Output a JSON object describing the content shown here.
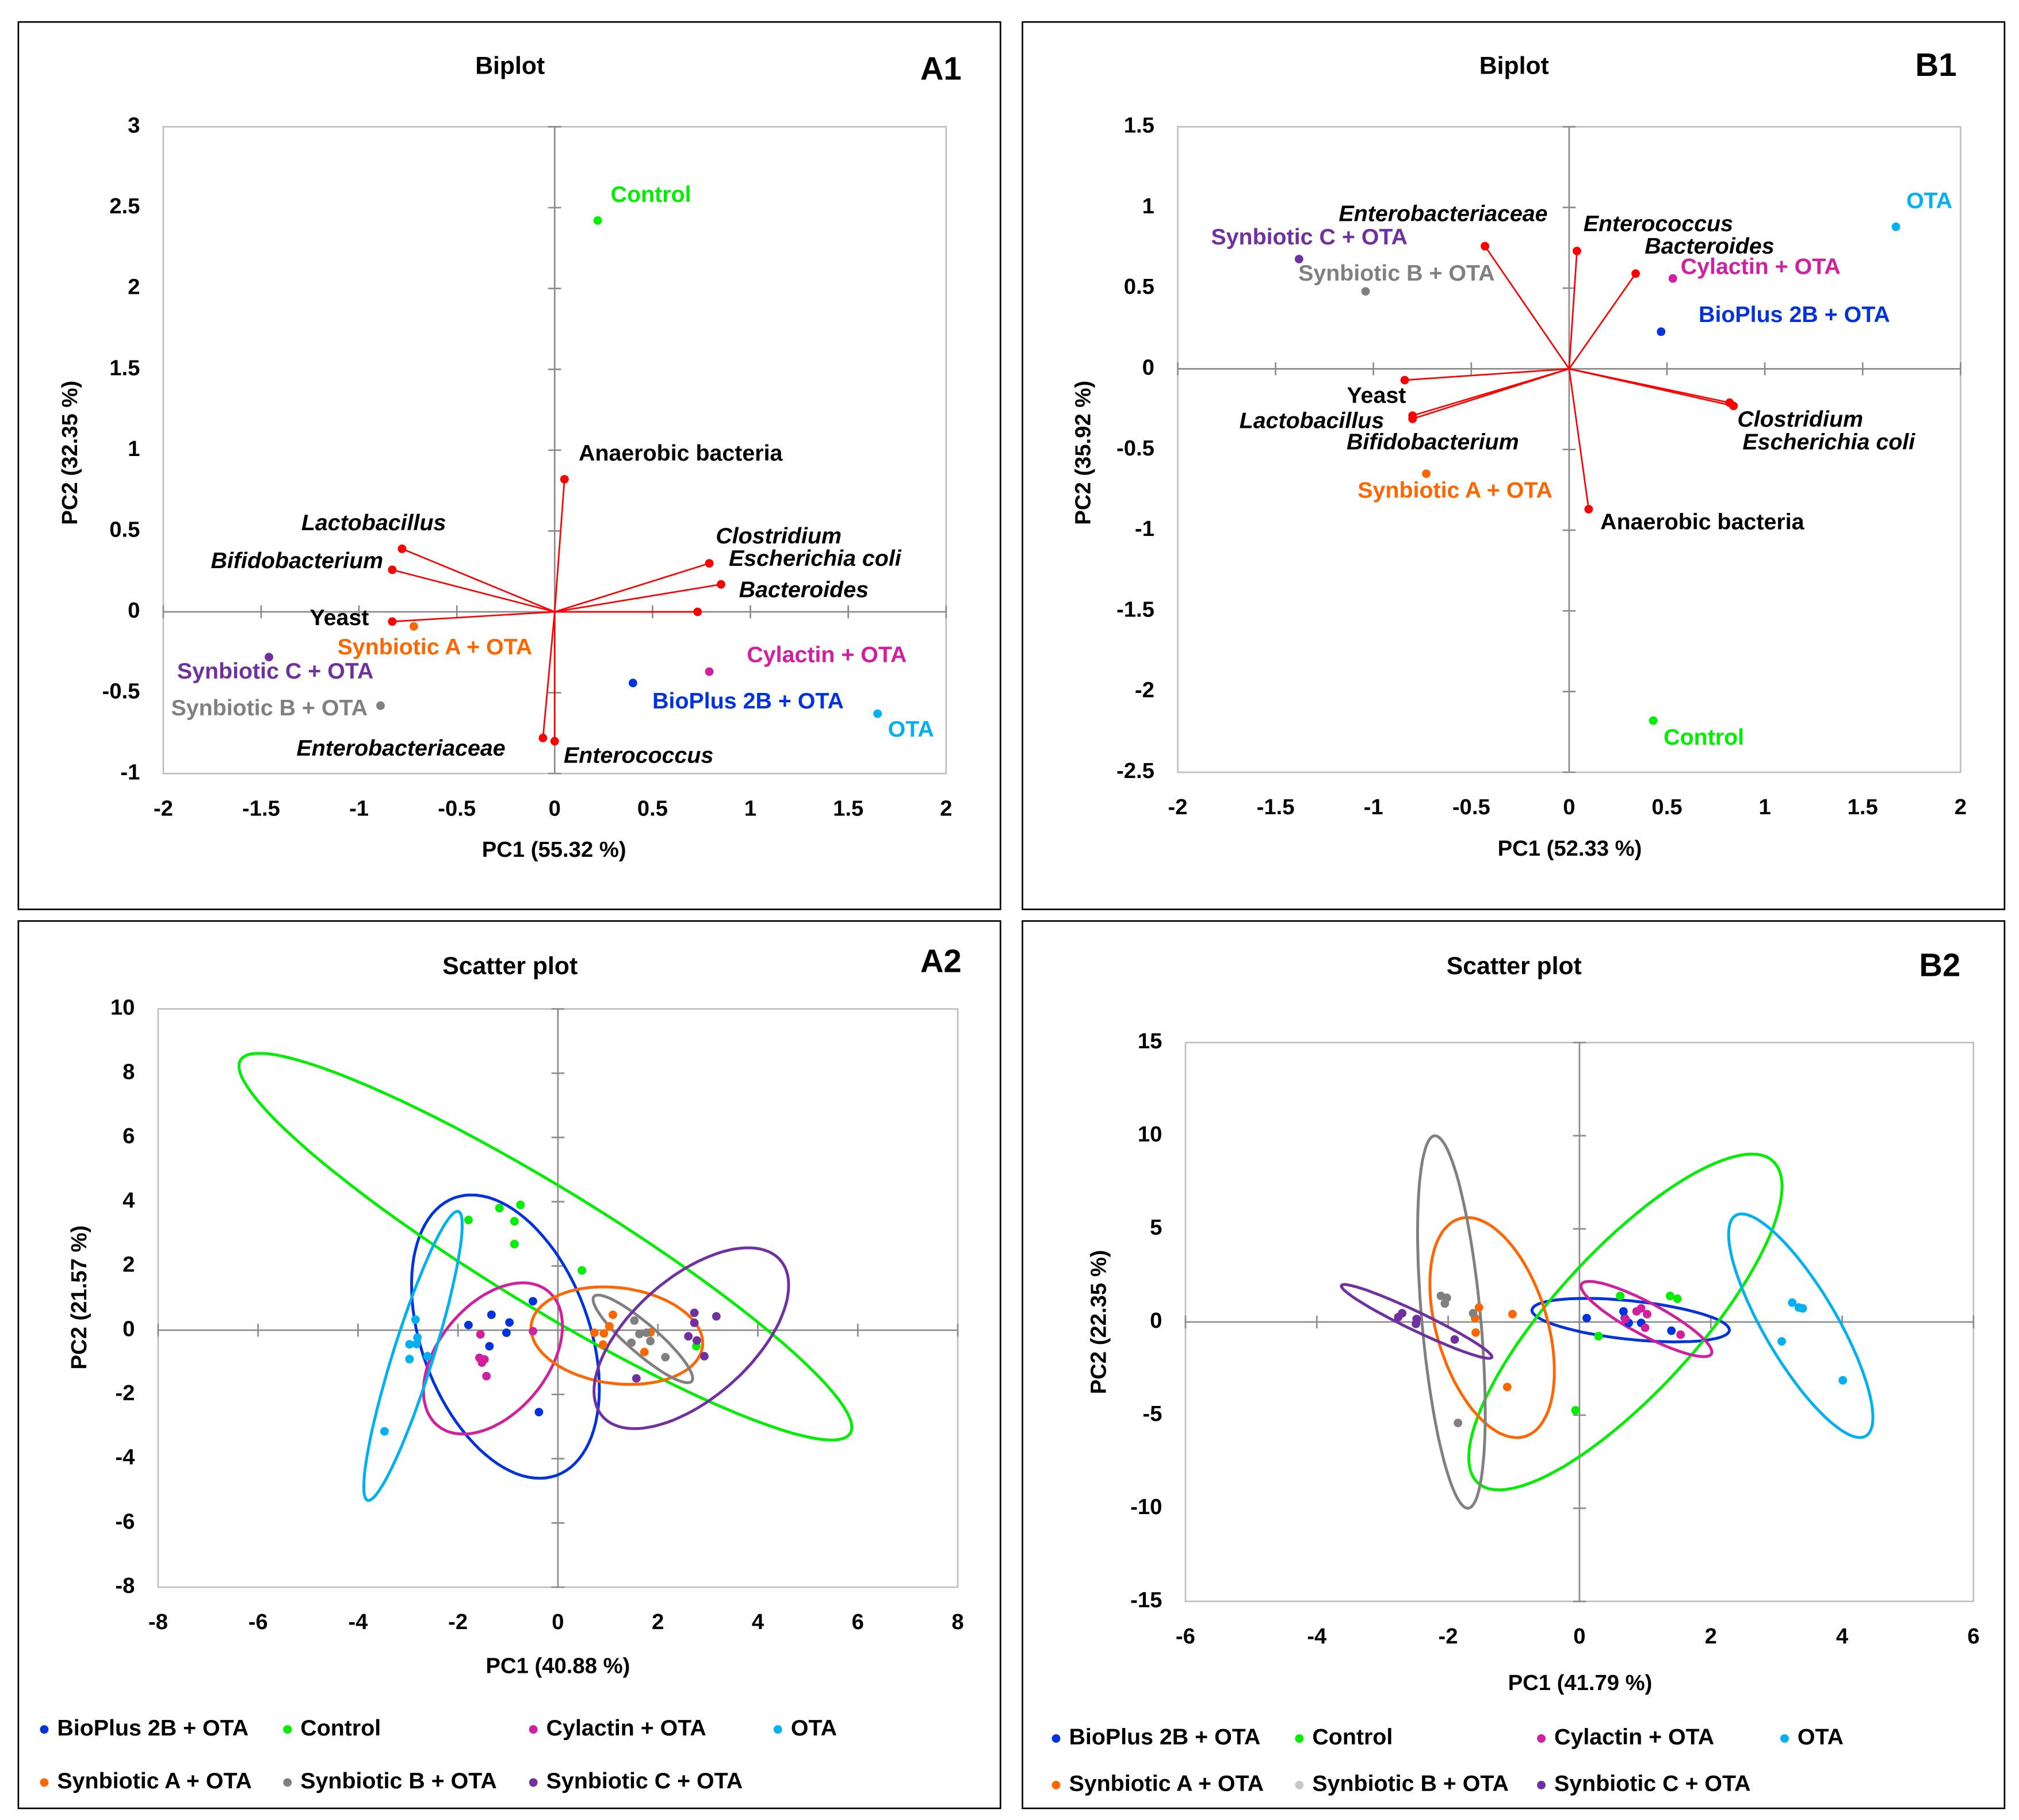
{
  "chart_data": [
    {
      "panel": "A1",
      "type": "scatter",
      "kind": "biplot",
      "title": "Biplot",
      "xlabel": "PC1 (55.32 %)",
      "ylabel": "PC2 (32.35 %)",
      "xlim": [
        -2,
        2
      ],
      "ylim": [
        -1,
        3
      ],
      "xticks": [
        -2,
        -1.5,
        -1,
        -0.5,
        0,
        0.5,
        1,
        1.5,
        2
      ],
      "yticks": [
        -1,
        -0.5,
        0,
        0.5,
        1,
        1.5,
        2,
        2.5,
        3
      ],
      "grid": false,
      "vector_color": "#ff0000",
      "observations": [
        {
          "name": "Control",
          "x": 0.22,
          "y": 2.42,
          "color": "#00ee00"
        },
        {
          "name": "OTA",
          "x": 1.65,
          "y": -0.63,
          "color": "#00b0f0"
        },
        {
          "name": "BioPlus 2B + OTA",
          "x": 0.4,
          "y": -0.44,
          "color": "#0033dd"
        },
        {
          "name": "Cylactin + OTA",
          "x": 0.79,
          "y": -0.37,
          "color": "#d020a0"
        },
        {
          "name": "Synbiotic A + OTA",
          "x": -0.72,
          "y": -0.09,
          "color": "#ff6600"
        },
        {
          "name": "Synbiotic B + OTA",
          "x": -0.89,
          "y": -0.58,
          "color": "#808080"
        },
        {
          "name": "Synbiotic C + OTA",
          "x": -1.46,
          "y": -0.28,
          "color": "#7030a0"
        }
      ],
      "variables": [
        {
          "name": "Anaerobic bacteria",
          "x": 0.05,
          "y": 0.82,
          "italic": false
        },
        {
          "name": "Lactobacillus",
          "x": -0.78,
          "y": 0.39,
          "italic": true
        },
        {
          "name": "Bifidobacterium",
          "x": -0.83,
          "y": 0.26,
          "italic": true
        },
        {
          "name": "Yeast",
          "x": -0.83,
          "y": -0.06,
          "italic": false
        },
        {
          "name": "Clostridium",
          "x": 0.79,
          "y": 0.3,
          "italic": true
        },
        {
          "name": "Escherichia coli",
          "x": 0.85,
          "y": 0.17,
          "italic": true
        },
        {
          "name": "Bacteroides",
          "x": 0.73,
          "y": 0.0,
          "italic": true
        },
        {
          "name": "Enterobacteriaceae",
          "x": -0.06,
          "y": -0.78,
          "italic": true
        },
        {
          "name": "Enterococcus",
          "x": 0.0,
          "y": -0.8,
          "italic": true
        }
      ]
    },
    {
      "panel": "B1",
      "type": "scatter",
      "kind": "biplot",
      "title": "Biplot",
      "xlabel": "PC1 (52.33 %)",
      "ylabel": "PC2 (35.92 %)",
      "xlim": [
        -2,
        2
      ],
      "ylim": [
        -2.5,
        1.5
      ],
      "xticks": [
        -2,
        -1.5,
        -1,
        -0.5,
        0,
        0.5,
        1,
        1.5,
        2
      ],
      "yticks": [
        -2.5,
        -2,
        -1.5,
        -1,
        -0.5,
        0,
        0.5,
        1,
        1.5
      ],
      "grid": false,
      "vector_color": "#ff0000",
      "observations": [
        {
          "name": "OTA",
          "x": 1.67,
          "y": 0.88,
          "color": "#00b0f0"
        },
        {
          "name": "Cylactin + OTA",
          "x": 0.53,
          "y": 0.56,
          "color": "#d020a0"
        },
        {
          "name": "BioPlus 2B + OTA",
          "x": 0.47,
          "y": 0.23,
          "color": "#0033dd"
        },
        {
          "name": "Synbiotic C + OTA",
          "x": -1.38,
          "y": 0.68,
          "color": "#7030a0"
        },
        {
          "name": "Synbiotic B + OTA",
          "x": -1.04,
          "y": 0.48,
          "color": "#808080"
        },
        {
          "name": "Synbiotic A + OTA",
          "x": -0.73,
          "y": -0.65,
          "color": "#ff6600"
        },
        {
          "name": "Control",
          "x": 0.43,
          "y": -2.18,
          "color": "#00ee00"
        }
      ],
      "variables": [
        {
          "name": "Enterobacteriaceae",
          "x": -0.43,
          "y": 0.76,
          "italic": true
        },
        {
          "name": "Enterococcus",
          "x": 0.04,
          "y": 0.73,
          "italic": true
        },
        {
          "name": "Bacteroides",
          "x": 0.34,
          "y": 0.59,
          "italic": true
        },
        {
          "name": "Yeast",
          "x": -0.84,
          "y": -0.07,
          "italic": false
        },
        {
          "name": "Lactobacillus",
          "x": -0.8,
          "y": -0.29,
          "italic": true
        },
        {
          "name": "Bifidobacterium",
          "x": -0.8,
          "y": -0.31,
          "italic": true
        },
        {
          "name": "Clostridium",
          "x": 0.82,
          "y": -0.21,
          "italic": true
        },
        {
          "name": "Escherichia coli",
          "x": 0.84,
          "y": -0.23,
          "italic": true
        },
        {
          "name": "Anaerobic bacteria",
          "x": 0.1,
          "y": -0.87,
          "italic": false
        }
      ]
    },
    {
      "panel": "A2",
      "type": "scatter",
      "kind": "scatter-ellipses",
      "title": "Scatter plot",
      "xlabel": "PC1 (40.88 %)",
      "ylabel": "PC2 (21.57 %)",
      "xlim": [
        -8,
        8
      ],
      "ylim": [
        -8,
        10
      ],
      "xticks": [
        -8,
        -6,
        -4,
        -2,
        0,
        2,
        4,
        6,
        8
      ],
      "yticks": [
        -8,
        -6,
        -4,
        -2,
        0,
        2,
        4,
        6,
        8,
        10
      ],
      "grid": false,
      "legend_position": "bottom",
      "series": [
        {
          "name": "BioPlus 2B + OTA",
          "color": "#0033dd",
          "legend_color": "#0033dd",
          "points": [
            [
              -0.5,
              0.9
            ],
            [
              -1.33,
              0.48
            ],
            [
              -1.79,
              0.16
            ],
            [
              -0.97,
              0.24
            ],
            [
              -1.03,
              -0.08
            ],
            [
              -1.37,
              -0.5
            ],
            [
              -0.38,
              -2.55
            ]
          ],
          "ellipse": {
            "center": [
              -1.05,
              -0.2
            ],
            "a": [
              -0.8,
              4.4
            ],
            "b": [
              1.7,
              0.3
            ]
          }
        },
        {
          "name": "Control",
          "color": "#00ee00",
          "legend_color": "#00ee00",
          "points": [
            [
              -1.79,
              3.43
            ],
            [
              -1.17,
              3.8
            ],
            [
              -0.75,
              3.9
            ],
            [
              -0.87,
              3.39
            ],
            [
              -0.87,
              2.68
            ],
            [
              0.48,
              1.86
            ],
            [
              2.77,
              -0.5
            ]
          ],
          "ellipse": {
            "center": [
              -0.25,
              2.6
            ],
            "a": [
              6.05,
              -5.9
            ],
            "b": [
              1.0,
              1.2
            ]
          }
        },
        {
          "name": "Cylactin + OTA",
          "color": "#d020a0",
          "legend_color": "#d020a0",
          "points": [
            [
              -0.5,
              -0.03
            ],
            [
              -1.55,
              -0.13
            ],
            [
              -1.57,
              -0.86
            ],
            [
              -1.47,
              -0.91
            ],
            [
              -1.52,
              -1.01
            ],
            [
              -1.43,
              -1.43
            ]
          ],
          "ellipse": {
            "center": [
              -1.3,
              -0.88
            ],
            "a": [
              0.85,
              2.3
            ],
            "b": [
              -1.1,
              0.5
            ]
          }
        },
        {
          "name": "OTA",
          "color": "#00b0f0",
          "legend_color": "#00b0f0",
          "points": [
            [
              -2.85,
              0.33
            ],
            [
              -2.81,
              -0.23
            ],
            [
              -2.97,
              -0.44
            ],
            [
              -2.83,
              -0.43
            ],
            [
              -2.61,
              -0.81
            ],
            [
              -2.97,
              -0.9
            ],
            [
              -3.47,
              -3.15
            ]
          ],
          "ellipse": {
            "center": [
              -2.9,
              -0.8
            ],
            "a": [
              0.9,
              4.5
            ],
            "b": [
              0.4,
              -0.1
            ]
          }
        },
        {
          "name": "Synbiotic A + OTA",
          "color": "#ff6600",
          "legend_color": "#ff6600",
          "points": [
            [
              1.1,
              0.48
            ],
            [
              1.03,
              0.12
            ],
            [
              0.73,
              -0.08
            ],
            [
              0.92,
              -0.1
            ],
            [
              0.9,
              -0.45
            ],
            [
              1.85,
              -0.07
            ],
            [
              1.73,
              -0.68
            ]
          ],
          "ellipse": {
            "center": [
              1.18,
              -0.17
            ],
            "a": [
              1.7,
              -0.45
            ],
            "b": [
              0.25,
              1.45
            ]
          }
        },
        {
          "name": "Synbiotic B + OTA",
          "color": "#808080",
          "legend_color": "#808080",
          "points": [
            [
              1.53,
              0.3
            ],
            [
              1.63,
              -0.12
            ],
            [
              1.77,
              -0.08
            ],
            [
              1.47,
              -0.39
            ],
            [
              1.85,
              -0.34
            ],
            [
              2.15,
              -0.84
            ]
          ],
          "ellipse": {
            "center": [
              1.7,
              -0.27
            ],
            "a": [
              0.95,
              -1.35
            ],
            "b": [
              0.3,
              0.2
            ]
          }
        },
        {
          "name": "Synbiotic C + OTA",
          "color": "#7030a0",
          "legend_color": "#7030a0",
          "points": [
            [
              2.73,
              0.54
            ],
            [
              3.17,
              0.43
            ],
            [
              2.73,
              0.23
            ],
            [
              2.61,
              -0.19
            ],
            [
              2.78,
              -0.32
            ],
            [
              2.93,
              -0.81
            ],
            [
              1.57,
              -1.5
            ]
          ],
          "ellipse": {
            "center": [
              2.67,
              -0.25
            ],
            "a": [
              1.45,
              2.75
            ],
            "b": [
              -1.3,
              0.6
            ]
          }
        }
      ]
    },
    {
      "panel": "B2",
      "type": "scatter",
      "kind": "scatter-ellipses",
      "title": "Scatter plot",
      "xlabel": "PC1 (41.79 %)",
      "ylabel": "PC2 (22.35 %)",
      "xlim": [
        -6,
        6
      ],
      "ylim": [
        -15,
        15
      ],
      "xticks": [
        -6,
        -4,
        -2,
        0,
        2,
        4,
        6
      ],
      "yticks": [
        -15,
        -10,
        -5,
        0,
        5,
        10,
        15
      ],
      "grid": false,
      "legend_position": "bottom",
      "series": [
        {
          "name": "BioPlus 2B + OTA",
          "color": "#0033dd",
          "legend_color": "#0033dd",
          "points": [
            [
              0.11,
              0.21
            ],
            [
              0.67,
              0.57
            ],
            [
              0.75,
              -0.05
            ],
            [
              0.94,
              -0.05
            ],
            [
              1.4,
              -0.47
            ],
            [
              0.69,
              0.21
            ]
          ],
          "ellipse": {
            "center": [
              0.78,
              0.1
            ],
            "a": [
              1.5,
              -0.6
            ],
            "b": [
              0.1,
              1.0
            ]
          }
        },
        {
          "name": "Control",
          "color": "#00ee00",
          "legend_color": "#00ee00",
          "points": [
            [
              0.62,
              1.4
            ],
            [
              1.38,
              1.4
            ],
            [
              1.49,
              1.25
            ],
            [
              0.29,
              -0.76
            ],
            [
              -0.06,
              -4.74
            ]
          ],
          "ellipse": {
            "center": [
              0.7,
              0.0
            ],
            "a": [
              2.0,
              9.0
            ],
            "b": [
              -1.3,
              0.5
            ]
          }
        },
        {
          "name": "Cylactin + OTA",
          "color": "#d020a0",
          "legend_color": "#d020a0",
          "points": [
            [
              0.87,
              0.57
            ],
            [
              1.03,
              0.42
            ],
            [
              0.7,
              0.16
            ],
            [
              1.0,
              -0.31
            ],
            [
              1.54,
              -0.68
            ],
            [
              0.94,
              0.73
            ]
          ],
          "ellipse": {
            "center": [
              1.02,
              0.16
            ],
            "a": [
              0.95,
              -1.98
            ],
            "b": [
              0.3,
              0.4
            ]
          }
        },
        {
          "name": "OTA",
          "color": "#00b0f0",
          "legend_color": "#00b0f0",
          "points": [
            [
              3.24,
              1.04
            ],
            [
              3.34,
              0.78
            ],
            [
              3.4,
              0.73
            ],
            [
              3.08,
              -1.04
            ],
            [
              4.01,
              -3.13
            ]
          ],
          "ellipse": {
            "center": [
              3.37,
              -0.2
            ],
            "a": [
              -0.92,
              6.0
            ],
            "b": [
              0.6,
              0.2
            ]
          }
        },
        {
          "name": "Synbiotic A + OTA",
          "color": "#ff6600",
          "legend_color": "#ff6600",
          "points": [
            [
              -1.53,
              0.78
            ],
            [
              -1.02,
              0.42
            ],
            [
              -1.59,
              0.21
            ],
            [
              -1.58,
              -0.57
            ],
            [
              -1.1,
              -3.49
            ]
          ],
          "ellipse": {
            "center": [
              -1.33,
              -0.3
            ],
            "a": [
              -0.42,
              5.9
            ],
            "b": [
              0.85,
              0.3
            ]
          }
        },
        {
          "name": "Synbiotic B + OTA",
          "color": "#808080",
          "legend_color": "#c8c8c8",
          "points": [
            [
              -2.11,
              1.4
            ],
            [
              -2.02,
              1.3
            ],
            [
              -2.05,
              0.99
            ],
            [
              -1.62,
              0.47
            ],
            [
              -1.85,
              -5.42
            ]
          ],
          "ellipse": {
            "center": [
              -1.95,
              0.0
            ],
            "a": [
              -0.25,
              10.0
            ],
            "b": [
              0.45,
              0.0
            ]
          }
        },
        {
          "name": "Synbiotic C + OTA",
          "color": "#7030a0",
          "legend_color": "#7030a0",
          "points": [
            [
              -2.7,
              0.47
            ],
            [
              -2.76,
              0.26
            ],
            [
              -2.48,
              0.16
            ],
            [
              -2.49,
              -0.1
            ],
            [
              -1.9,
              -0.94
            ]
          ],
          "ellipse": {
            "center": [
              -2.48,
              0.03
            ],
            "a": [
              1.14,
              -1.95
            ],
            "b": [
              0.12,
              0.35
            ]
          }
        }
      ]
    }
  ]
}
